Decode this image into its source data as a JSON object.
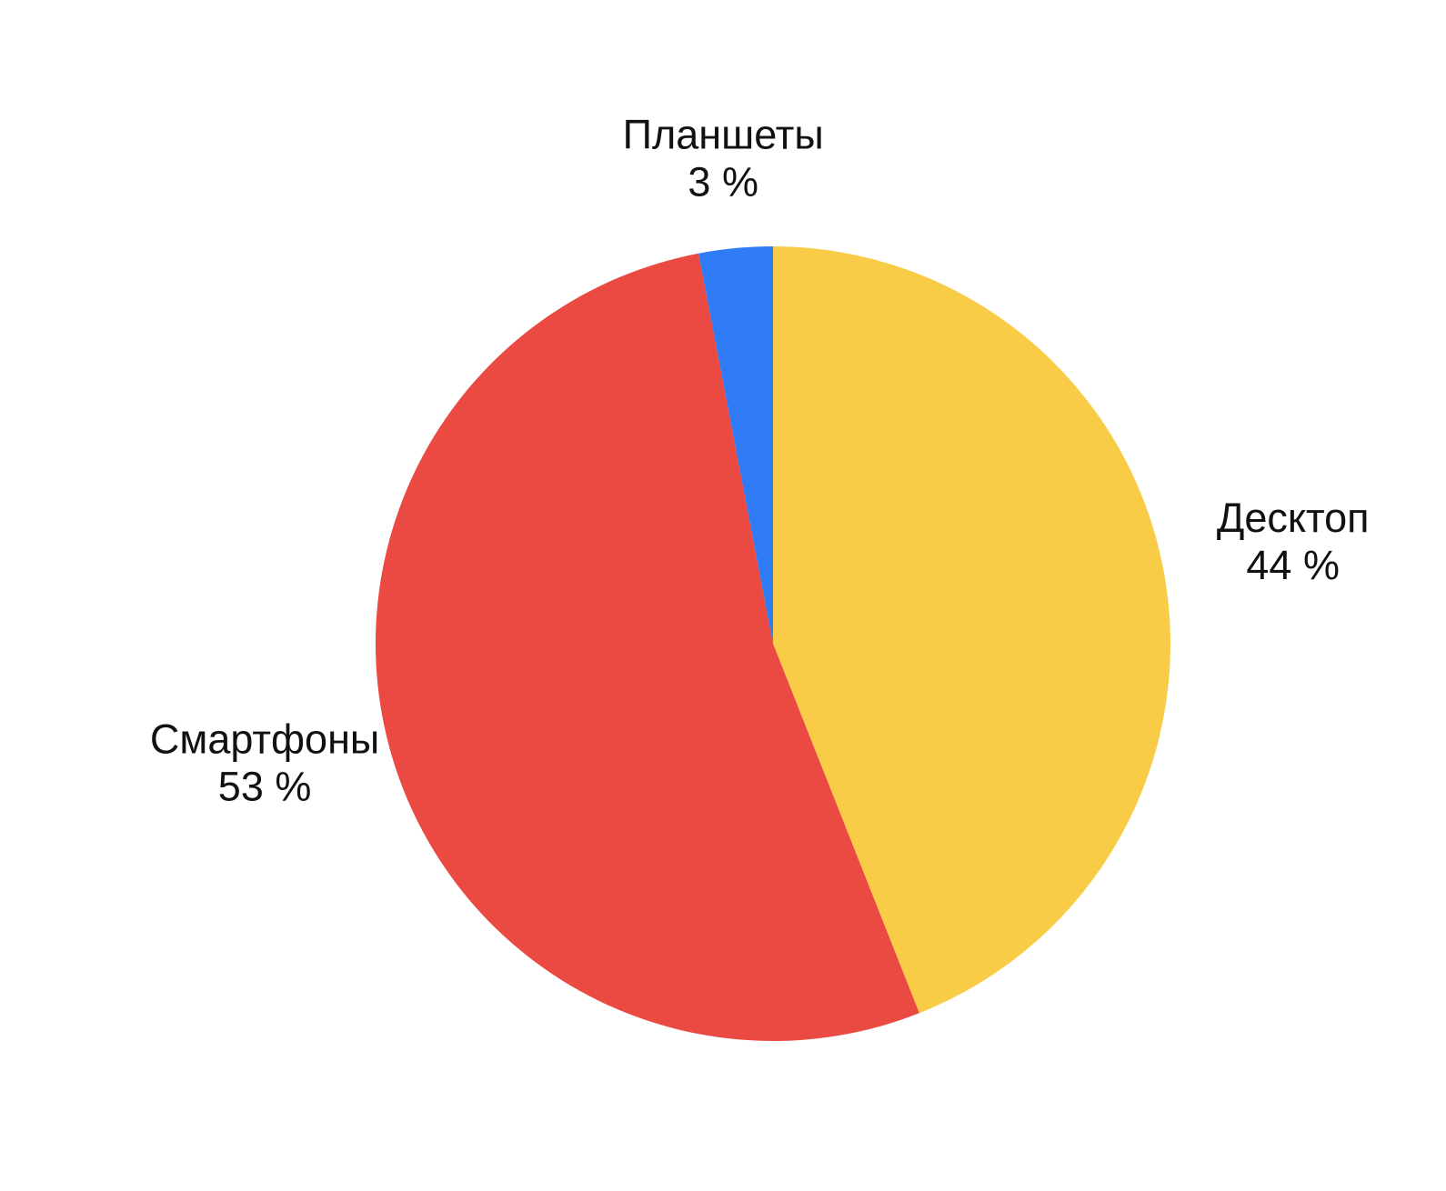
{
  "chart_data": {
    "type": "pie",
    "title": "",
    "start": "top",
    "direction": "clockwise",
    "slices": [
      {
        "label": "Десктоп",
        "value": 44,
        "value_label": "44 %",
        "color": "#F8CC47"
      },
      {
        "label": "Смартфоны",
        "value": 53,
        "value_label": "53 %",
        "color": "#EA4A42"
      },
      {
        "label": "Планшеты",
        "value": 3,
        "value_label": "3 %",
        "color": "#2F7AF5"
      }
    ]
  }
}
